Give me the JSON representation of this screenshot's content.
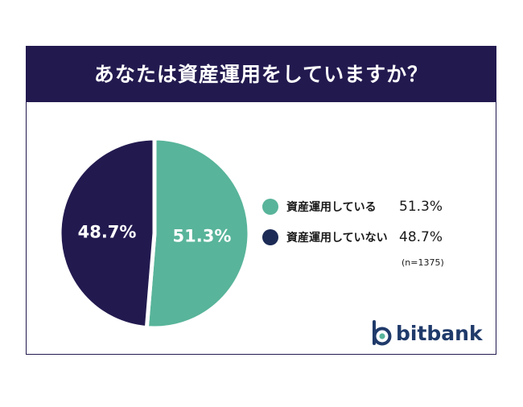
{
  "header": {
    "title": "あなたは資産運用をしていますか？"
  },
  "chart_data": {
    "type": "pie",
    "title": "あなたは資産運用をしていますか？",
    "slices": [
      {
        "label": "資産運用している",
        "value": 51.3,
        "display": "51.3%",
        "color": "#58b49a"
      },
      {
        "label": "資産運用していない",
        "value": 48.7,
        "display": "48.7%",
        "color": "#221a4f"
      }
    ],
    "sample_size": "(n=1375)",
    "legend_position": "right"
  },
  "legend": {
    "items": [
      {
        "label": "資産運用している",
        "value": "51.3%",
        "color": "#58b49a"
      },
      {
        "label": "資産運用していない",
        "value": "48.7%",
        "color": "#1c2b55"
      }
    ],
    "sample": "(n=1375)"
  },
  "brand": {
    "name": "bitbank",
    "icon": "bitbank-logo-icon",
    "color": "#1f3a6a"
  },
  "colors": {
    "header_bg": "#221a4f",
    "accent_green": "#58b49a",
    "accent_navy": "#221a4f"
  }
}
